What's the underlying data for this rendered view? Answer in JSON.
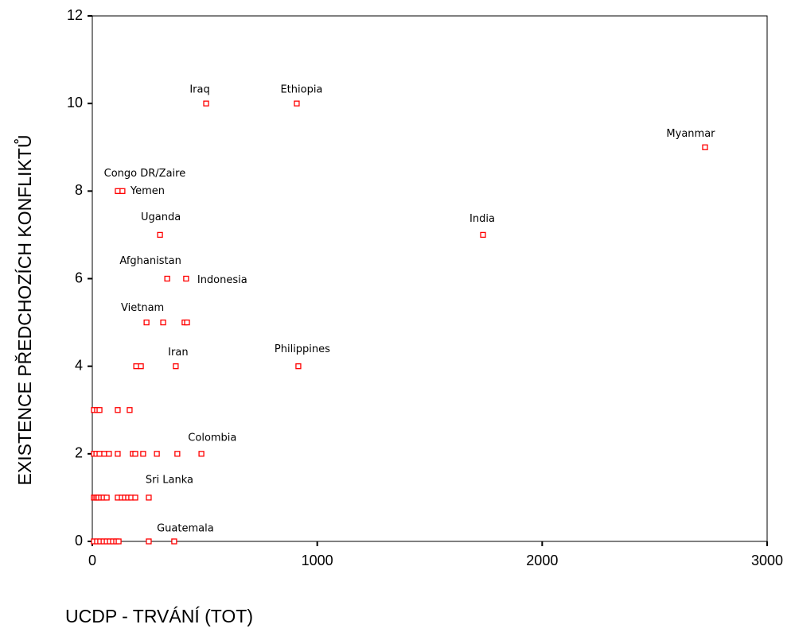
{
  "chart_data": {
    "type": "scatter",
    "xlabel": "UCDP - TRVÁNÍ (TOT)",
    "ylabel": "EXISTENCE PŘEDCHOZÍCH KONFLIKTŮ",
    "xlim": [
      0,
      3000
    ],
    "xticks": [
      0,
      1000,
      2000,
      3000
    ],
    "ylim": [
      0,
      12
    ],
    "yticks": [
      0,
      2,
      4,
      6,
      8,
      10,
      12
    ],
    "series": [
      {
        "color": "#ff0000",
        "x": [
          506,
          909,
          2724,
          113,
          134,
          301,
          1737,
          333,
          417,
          241,
          315,
          410,
          421,
          195,
          216,
          371,
          916,
          7,
          21,
          32,
          113,
          166,
          7,
          18,
          32,
          53,
          74,
          113,
          180,
          191,
          226,
          287,
          378,
          485,
          7,
          14,
          21,
          28,
          39,
          50,
          64,
          113,
          131,
          145,
          159,
          173,
          191,
          251,
          7,
          21,
          35,
          50,
          64,
          78,
          92,
          106,
          117,
          251,
          364
        ],
        "values": [
          10,
          10,
          9,
          8,
          8,
          7,
          7,
          6,
          6,
          5,
          5,
          5,
          5,
          4,
          4,
          4,
          4,
          3,
          3,
          3,
          3,
          3,
          2,
          2,
          2,
          2,
          2,
          2,
          2,
          2,
          2,
          2,
          2,
          2,
          1,
          1,
          1,
          1,
          1,
          1,
          1,
          1,
          1,
          1,
          1,
          1,
          1,
          1,
          0,
          0,
          0,
          0,
          0,
          0,
          0,
          0,
          0,
          0,
          0
        ],
        "labels": [
          "Iraq",
          "Ethiopia",
          "Myanmar",
          "Congo DR/Zaire",
          "Yemen",
          "Uganda",
          "India",
          "Afghanistan",
          "Indonesia",
          "Vietnam",
          null,
          null,
          null,
          null,
          null,
          "Iran",
          "Philippines",
          null,
          null,
          null,
          null,
          null,
          null,
          null,
          null,
          null,
          null,
          null,
          null,
          null,
          null,
          null,
          "Colombia",
          null,
          null,
          null,
          null,
          null,
          null,
          null,
          null,
          null,
          null,
          null,
          null,
          null,
          null,
          "Sri Lanka",
          null,
          null,
          null,
          null,
          null,
          null,
          null,
          null,
          null,
          null,
          "Guatemala"
        ]
      }
    ]
  }
}
